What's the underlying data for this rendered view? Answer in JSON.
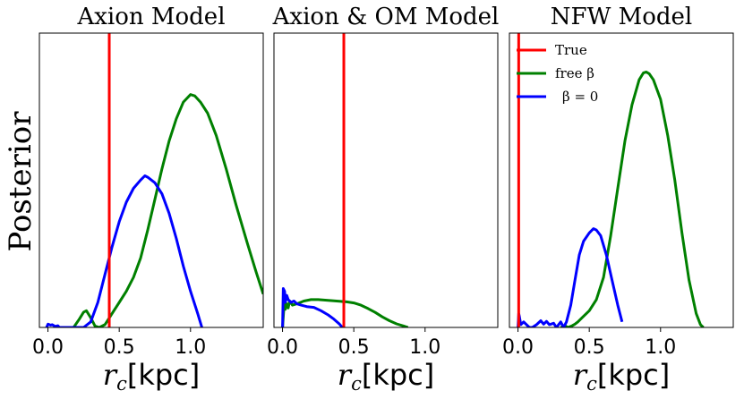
{
  "ylabel": "Posterior",
  "chart_data": [
    {
      "type": "line",
      "title": "Axion Model",
      "xlabel_var": "r",
      "xlabel_sub": "c",
      "xlabel_unit": "[kpc]",
      "xlim": [
        -0.06,
        1.51
      ],
      "ylim": [
        0,
        1
      ],
      "xticks": [
        0.0,
        0.5,
        1.0
      ],
      "xtick_labels": [
        "0.0",
        "0.5",
        "1.0"
      ],
      "true_value": 0.43,
      "series": [
        {
          "name": "free β",
          "color": "#008000",
          "x": [
            0.18,
            0.22,
            0.25,
            0.27,
            0.3,
            0.33,
            0.36,
            0.4,
            0.45,
            0.5,
            0.55,
            0.6,
            0.65,
            0.7,
            0.75,
            0.8,
            0.85,
            0.9,
            0.95,
            1.0,
            1.03,
            1.07,
            1.12,
            1.18,
            1.25,
            1.32,
            1.4,
            1.46,
            1.51
          ],
          "y": [
            0.0,
            0.03,
            0.055,
            0.06,
            0.035,
            0.005,
            0.0,
            0.01,
            0.05,
            0.09,
            0.13,
            0.18,
            0.25,
            0.35,
            0.46,
            0.57,
            0.67,
            0.75,
            0.81,
            0.837,
            0.832,
            0.81,
            0.77,
            0.69,
            0.57,
            0.44,
            0.3,
            0.2,
            0.12
          ]
        },
        {
          "name": "β = 0",
          "color": "#0000ff",
          "x": [
            -0.01,
            0.0,
            0.02,
            0.03,
            0.05,
            0.07,
            0.08,
            0.25,
            0.3,
            0.35,
            0.4,
            0.45,
            0.5,
            0.55,
            0.6,
            0.65,
            0.68,
            0.7,
            0.75,
            0.8,
            0.85,
            0.9,
            0.95,
            1.0,
            1.05,
            1.08
          ],
          "y": [
            0.0,
            0.012,
            0.008,
            0.01,
            0.004,
            0.006,
            0.0,
            0.0,
            0.02,
            0.09,
            0.19,
            0.29,
            0.38,
            0.45,
            0.5,
            0.53,
            0.545,
            0.54,
            0.52,
            0.48,
            0.41,
            0.32,
            0.22,
            0.13,
            0.05,
            0.0
          ]
        }
      ]
    },
    {
      "type": "line",
      "title": "Axion & OM Model",
      "xlabel_var": "r",
      "xlabel_sub": "c",
      "xlabel_unit": "[kpc]",
      "xlim": [
        -0.06,
        1.51
      ],
      "ylim": [
        0,
        1
      ],
      "xticks": [
        0.0,
        0.5,
        1.0
      ],
      "xtick_labels": [
        "0.0",
        "0.5",
        "1.0"
      ],
      "true_value": 0.43,
      "series": [
        {
          "name": "free β",
          "color": "#008000",
          "x": [
            0.0,
            0.01,
            0.015,
            0.02,
            0.03,
            0.04,
            0.05,
            0.07,
            0.1,
            0.15,
            0.2,
            0.25,
            0.3,
            0.35,
            0.4,
            0.45,
            0.5,
            0.55,
            0.6,
            0.65,
            0.7,
            0.75,
            0.8,
            0.85,
            0.88
          ],
          "y": [
            0.0,
            0.07,
            0.09,
            0.065,
            0.085,
            0.07,
            0.095,
            0.08,
            0.085,
            0.095,
            0.1,
            0.1,
            0.098,
            0.096,
            0.094,
            0.092,
            0.088,
            0.08,
            0.068,
            0.054,
            0.038,
            0.024,
            0.013,
            0.005,
            0.0
          ]
        },
        {
          "name": "β = 0",
          "color": "#0000ff",
          "x": [
            0.0,
            0.005,
            0.015,
            0.02,
            0.03,
            0.04,
            0.06,
            0.08,
            0.1,
            0.13,
            0.17,
            0.22,
            0.27,
            0.32,
            0.36,
            0.4,
            0.42
          ],
          "y": [
            0.0,
            0.14,
            0.13,
            0.09,
            0.115,
            0.1,
            0.09,
            0.095,
            0.085,
            0.08,
            0.075,
            0.072,
            0.06,
            0.045,
            0.03,
            0.012,
            0.0
          ]
        }
      ]
    },
    {
      "type": "line",
      "title": "NFW Model",
      "xlabel_var": "r",
      "xlabel_sub": "c",
      "xlabel_unit": "[kpc]",
      "xlim": [
        -0.06,
        1.51
      ],
      "ylim": [
        0,
        1
      ],
      "xticks": [
        0.0,
        0.5,
        1.0
      ],
      "xtick_labels": [
        "0.0",
        "0.5",
        "1.0"
      ],
      "true_value": 0.005,
      "legend": {
        "placement": "top-left",
        "entries": [
          "True",
          "free β",
          "β = 0"
        ],
        "colors": [
          "#ff0000",
          "#008000",
          "#0000ff"
        ]
      },
      "series": [
        {
          "name": "free β",
          "color": "#008000",
          "x": [
            0.3,
            0.33,
            0.35,
            0.38,
            0.4,
            0.42,
            0.45,
            0.5,
            0.55,
            0.6,
            0.65,
            0.7,
            0.75,
            0.8,
            0.85,
            0.88,
            0.9,
            0.92,
            0.95,
            1.0,
            1.05,
            1.1,
            1.15,
            1.2,
            1.25,
            1.28,
            1.3
          ],
          "y": [
            0.0,
            0.006,
            0.0,
            0.006,
            0.012,
            0.02,
            0.035,
            0.06,
            0.1,
            0.18,
            0.33,
            0.5,
            0.67,
            0.8,
            0.89,
            0.915,
            0.918,
            0.912,
            0.89,
            0.82,
            0.69,
            0.53,
            0.34,
            0.17,
            0.05,
            0.01,
            0.0
          ]
        },
        {
          "name": "β = 0",
          "color": "#0000ff",
          "x": [
            0.0,
            0.005,
            0.01,
            0.02,
            0.04,
            0.06,
            0.08,
            0.1,
            0.13,
            0.16,
            0.18,
            0.2,
            0.22,
            0.25,
            0.27,
            0.3,
            0.32,
            0.34,
            0.37,
            0.4,
            0.43,
            0.46,
            0.5,
            0.53,
            0.55,
            0.58,
            0.62,
            0.66,
            0.7,
            0.73
          ],
          "y": [
            0.0,
            0.05,
            0.04,
            0.01,
            0.02,
            0.01,
            0.0,
            0.0,
            0.01,
            0.024,
            0.012,
            0.022,
            0.01,
            0.015,
            0.0,
            0.02,
            0.0,
            0.02,
            0.08,
            0.17,
            0.26,
            0.31,
            0.34,
            0.355,
            0.35,
            0.33,
            0.26,
            0.17,
            0.08,
            0.02
          ]
        }
      ]
    }
  ]
}
